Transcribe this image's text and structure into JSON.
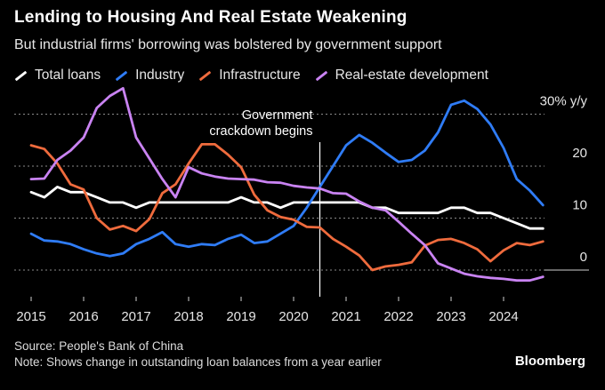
{
  "title": "Lending to Housing And Real Estate Weakening",
  "subtitle": "But industrial firms' borrowing was bolstered by government support",
  "source": "Source: People's Bank of China",
  "note": "Note: Shows change in outstanding loan balances from a year earlier",
  "brand": "Bloomberg",
  "annotation": "Government crackdown begins",
  "colors": {
    "background": "#000000",
    "total": "#ffffff",
    "industry": "#2f7cf6",
    "infrastructure": "#ef6b3d",
    "realestate": "#c983f2",
    "grid": "#8a8a8a"
  },
  "chart_data": {
    "type": "line",
    "xlim": [
      2015,
      2025
    ],
    "ylim": [
      -5,
      33
    ],
    "grid": true,
    "legend_placement": "top-left",
    "x_ticks": [
      "2015",
      "2016",
      "2017",
      "2018",
      "2019",
      "2020",
      "2021",
      "2022",
      "2023",
      "2024"
    ],
    "y_ticks": [
      {
        "value": 30,
        "label": "30% y/y"
      },
      {
        "value": 20,
        "label": "20"
      },
      {
        "value": 10,
        "label": "10"
      },
      {
        "value": 0,
        "label": "0"
      }
    ],
    "annotation_x": 2020.5,
    "series": [
      {
        "name": "Total loans",
        "color": "#ffffff",
        "x": [
          2015.0,
          2015.25,
          2015.5,
          2015.75,
          2016.0,
          2016.25,
          2016.5,
          2016.75,
          2017.0,
          2017.25,
          2017.5,
          2017.75,
          2018.0,
          2018.25,
          2018.5,
          2018.75,
          2019.0,
          2019.25,
          2019.5,
          2019.75,
          2020.0,
          2020.25,
          2020.5,
          2020.75,
          2021.0,
          2021.25,
          2021.5,
          2021.75,
          2022.0,
          2022.25,
          2022.5,
          2022.75,
          2023.0,
          2023.25,
          2023.5,
          2023.75,
          2024.0,
          2024.25,
          2024.5,
          2024.75
        ],
        "y": [
          15,
          14,
          16,
          15,
          15,
          14,
          13,
          13,
          12,
          13,
          13,
          13,
          13,
          13,
          13,
          13,
          14,
          13,
          13,
          12,
          13,
          13,
          13,
          13,
          13,
          13,
          12,
          12,
          11,
          11,
          11,
          11,
          12,
          12,
          11,
          11,
          10,
          9,
          8,
          8
        ]
      },
      {
        "name": "Industry",
        "color": "#2f7cf6",
        "x": [
          2015.0,
          2015.25,
          2015.5,
          2015.75,
          2016.0,
          2016.25,
          2016.5,
          2016.75,
          2017.0,
          2017.25,
          2017.5,
          2017.75,
          2018.0,
          2018.25,
          2018.5,
          2018.75,
          2019.0,
          2019.25,
          2019.5,
          2019.75,
          2020.0,
          2020.25,
          2020.5,
          2020.75,
          2021.0,
          2021.25,
          2021.5,
          2021.75,
          2022.0,
          2022.25,
          2022.5,
          2022.75,
          2023.0,
          2023.25,
          2023.5,
          2023.75,
          2024.0,
          2024.25,
          2024.5,
          2024.75
        ],
        "y": [
          7,
          5.7,
          5.5,
          5,
          4,
          3.2,
          2.7,
          3.2,
          5,
          6,
          7.3,
          5,
          4.5,
          5,
          4.8,
          6,
          6.8,
          5.2,
          5.5,
          7,
          8.5,
          12,
          16,
          20,
          24,
          26,
          24.5,
          22.6,
          20.8,
          21.2,
          23,
          26.5,
          31.8,
          32.6,
          31,
          28,
          23.5,
          17.5,
          15.3,
          12.5
        ]
      },
      {
        "name": "Infrastructure",
        "color": "#ef6b3d",
        "x": [
          2015.0,
          2015.25,
          2015.5,
          2015.75,
          2016.0,
          2016.25,
          2016.5,
          2016.75,
          2017.0,
          2017.25,
          2017.5,
          2017.75,
          2018.0,
          2018.25,
          2018.5,
          2018.75,
          2019.0,
          2019.25,
          2019.5,
          2019.75,
          2020.0,
          2020.25,
          2020.5,
          2020.75,
          2021.0,
          2021.25,
          2021.5,
          2021.75,
          2022.0,
          2022.25,
          2022.5,
          2022.75,
          2023.0,
          2023.25,
          2023.5,
          2023.75,
          2024.0,
          2024.25,
          2024.5,
          2024.75
        ],
        "y": [
          24,
          23.3,
          20.5,
          16.5,
          15.5,
          10,
          7.8,
          8.5,
          7.5,
          9.8,
          14.8,
          16.5,
          20.5,
          24.2,
          24.2,
          22.2,
          19.8,
          14.5,
          11.5,
          10.2,
          9.7,
          8.3,
          8.2,
          6,
          4.5,
          2.8,
          0,
          0.7,
          1,
          1.5,
          4.7,
          5.8,
          6,
          5.2,
          4,
          1.7,
          3.8,
          5.2,
          4.8,
          5.5
        ]
      },
      {
        "name": "Real-estate development",
        "color": "#c983f2",
        "x": [
          2015.0,
          2015.25,
          2015.5,
          2015.75,
          2016.0,
          2016.25,
          2016.5,
          2016.75,
          2017.0,
          2017.25,
          2017.5,
          2017.75,
          2018.0,
          2018.25,
          2018.5,
          2018.75,
          2019.0,
          2019.25,
          2019.5,
          2019.75,
          2020.0,
          2020.25,
          2020.5,
          2020.75,
          2021.0,
          2021.25,
          2021.5,
          2021.75,
          2022.0,
          2022.25,
          2022.5,
          2022.75,
          2023.0,
          2023.25,
          2023.5,
          2023.75,
          2024.0,
          2024.25,
          2024.5,
          2024.75
        ],
        "y": [
          17.5,
          17.6,
          21.2,
          23,
          25.5,
          31.2,
          33.5,
          35,
          25.5,
          21.5,
          17.5,
          14,
          19.8,
          18.6,
          18,
          17.6,
          17.5,
          17.4,
          16.9,
          16.8,
          16.2,
          15.9,
          15.7,
          14.8,
          14.7,
          13.2,
          12,
          11.5,
          9.3,
          7,
          4.8,
          1.3,
          0.3,
          -0.7,
          -1.2,
          -1.5,
          -1.7,
          -2,
          -2,
          -1.3
        ]
      }
    ]
  }
}
